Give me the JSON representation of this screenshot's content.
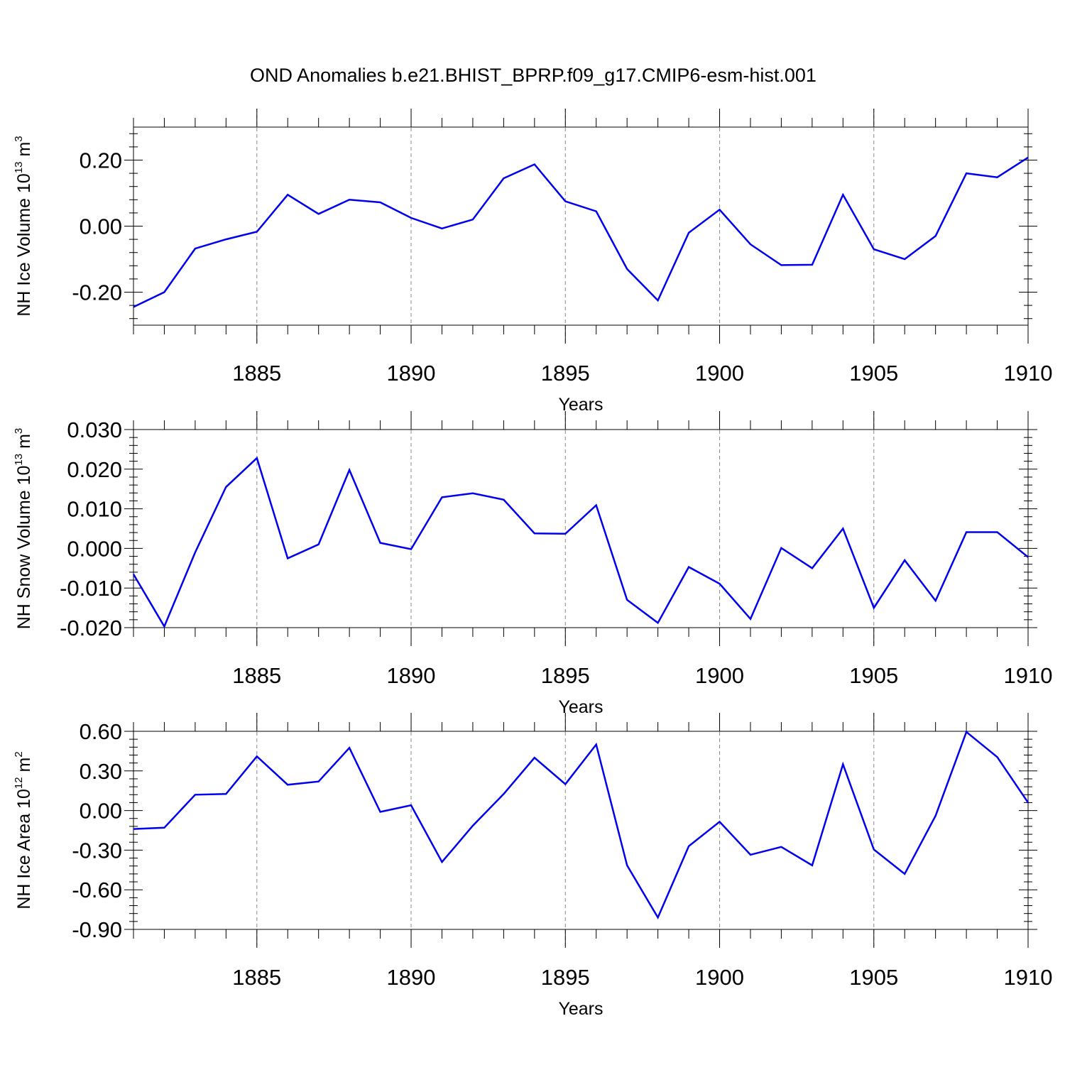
{
  "title": "OND Anomalies b.e21.BHIST_BPRP.f09_g17.CMIP6-esm-hist.001",
  "colors": {
    "line": "#0000ee",
    "grid": "#888888",
    "axis": "#000000"
  },
  "chart_data": [
    {
      "type": "line",
      "ylabel_text": "NH Ice Volume 10",
      "ylabel_exp": "13",
      "ylabel_unit": " m",
      "ylabel_unit_exp": "3",
      "xlabel": "Years",
      "xlim": [
        1881,
        1910
      ],
      "ylim": [
        -0.3,
        0.3
      ],
      "yticks": [
        -0.2,
        0.0,
        0.2
      ],
      "ytick_labels": [
        "-0.20",
        "0.00",
        "0.20"
      ],
      "xticks": [
        1885,
        1890,
        1895,
        1900,
        1905,
        1910
      ],
      "xtick_labels": [
        "1885",
        "1890",
        "1895",
        "1900",
        "1905",
        "1910"
      ],
      "grid_x": [
        1885,
        1890,
        1895,
        1900,
        1905
      ],
      "x": [
        1881,
        1882,
        1883,
        1884,
        1885,
        1886,
        1887,
        1888,
        1889,
        1890,
        1891,
        1892,
        1893,
        1894,
        1895,
        1896,
        1897,
        1898,
        1899,
        1900,
        1901,
        1902,
        1903,
        1904,
        1905,
        1906,
        1907,
        1908,
        1909,
        1910
      ],
      "series": [
        {
          "values": [
            -0.245,
            -0.2,
            -0.068,
            -0.04,
            -0.017,
            0.095,
            0.037,
            0.08,
            0.072,
            0.025,
            -0.007,
            0.02,
            0.145,
            0.187,
            0.075,
            0.045,
            -0.13,
            -0.225,
            -0.02,
            0.05,
            -0.055,
            -0.118,
            -0.117,
            0.095,
            -0.07,
            -0.1,
            -0.03,
            0.16,
            0.148,
            0.208
          ]
        }
      ]
    },
    {
      "type": "line",
      "ylabel_text": "NH Snow Volume 10",
      "ylabel_exp": "13",
      "ylabel_unit": " m",
      "ylabel_unit_exp": "3",
      "xlabel": "Years",
      "xlim": [
        1881,
        1910
      ],
      "ylim": [
        -0.02,
        0.03
      ],
      "yticks": [
        -0.02,
        -0.01,
        0.0,
        0.01,
        0.02,
        0.03
      ],
      "ytick_labels": [
        "-0.020",
        "-0.010",
        "0.000",
        "0.010",
        "0.020",
        "0.030"
      ],
      "xticks": [
        1885,
        1890,
        1895,
        1900,
        1905,
        1910
      ],
      "xtick_labels": [
        "1885",
        "1890",
        "1895",
        "1900",
        "1905",
        "1910"
      ],
      "grid_x": [
        1885,
        1890,
        1895,
        1900,
        1905
      ],
      "x": [
        1881,
        1882,
        1883,
        1884,
        1885,
        1886,
        1887,
        1888,
        1889,
        1890,
        1891,
        1892,
        1893,
        1894,
        1895,
        1896,
        1897,
        1898,
        1899,
        1900,
        1901,
        1902,
        1903,
        1904,
        1905,
        1906,
        1907,
        1908,
        1909,
        1910
      ],
      "series": [
        {
          "values": [
            -0.0065,
            -0.0197,
            -0.001,
            0.0155,
            0.0228,
            -0.0025,
            0.001,
            0.0198,
            0.0014,
            -0.0002,
            0.0129,
            0.0139,
            0.0123,
            0.0038,
            0.0037,
            0.0109,
            -0.013,
            -0.0188,
            -0.0047,
            -0.0089,
            -0.0178,
            0.0001,
            -0.005,
            0.005,
            -0.015,
            -0.003,
            -0.0132,
            0.0041,
            0.0041,
            -0.0022
          ]
        }
      ]
    },
    {
      "type": "line",
      "ylabel_text": "NH Ice Area 10",
      "ylabel_exp": "12",
      "ylabel_unit": " m",
      "ylabel_unit_exp": "2",
      "xlabel": "Years",
      "xlim": [
        1881,
        1910
      ],
      "ylim": [
        -0.9,
        0.6
      ],
      "yticks": [
        -0.9,
        -0.6,
        -0.3,
        0.0,
        0.3,
        0.6
      ],
      "ytick_labels": [
        "-0.90",
        "-0.60",
        "-0.30",
        "0.00",
        "0.30",
        "0.60"
      ],
      "xticks": [
        1885,
        1890,
        1895,
        1900,
        1905,
        1910
      ],
      "xtick_labels": [
        "1885",
        "1890",
        "1895",
        "1900",
        "1905",
        "1910"
      ],
      "grid_x": [
        1885,
        1890,
        1895,
        1900,
        1905
      ],
      "x": [
        1881,
        1882,
        1883,
        1884,
        1885,
        1886,
        1887,
        1888,
        1889,
        1890,
        1891,
        1892,
        1893,
        1894,
        1895,
        1896,
        1897,
        1898,
        1899,
        1900,
        1901,
        1902,
        1903,
        1904,
        1905,
        1906,
        1907,
        1908,
        1909,
        1910
      ],
      "series": [
        {
          "values": [
            -0.14,
            -0.13,
            0.12,
            0.125,
            0.41,
            0.195,
            0.22,
            0.475,
            -0.01,
            0.04,
            -0.39,
            -0.115,
            0.125,
            0.4,
            0.2,
            0.5,
            -0.415,
            -0.81,
            -0.27,
            -0.085,
            -0.335,
            -0.275,
            -0.415,
            0.35,
            -0.295,
            -0.48,
            -0.04,
            0.595,
            0.405,
            0.06
          ]
        }
      ]
    }
  ]
}
